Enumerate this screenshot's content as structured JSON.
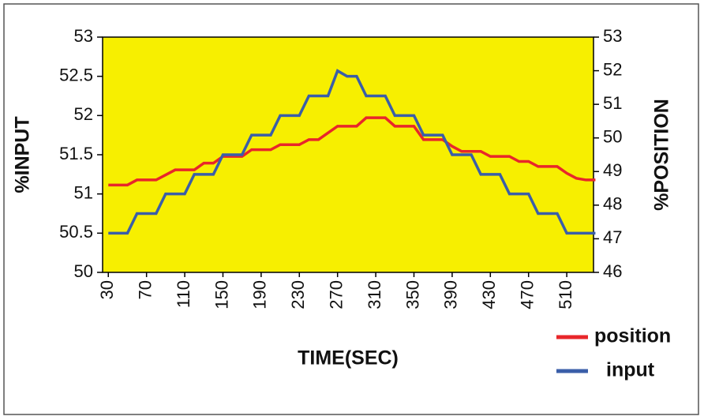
{
  "chart_data": {
    "type": "line",
    "x_label": "TIME(SEC)",
    "y_label": "%INPUT",
    "y2_label": "%POSITION",
    "x": [
      30,
      40,
      50,
      60,
      70,
      80,
      90,
      100,
      110,
      120,
      130,
      140,
      150,
      160,
      170,
      180,
      190,
      200,
      210,
      220,
      230,
      240,
      250,
      260,
      270,
      280,
      290,
      300,
      310,
      320,
      330,
      340,
      350,
      360,
      370,
      380,
      390,
      400,
      410,
      420,
      430,
      440,
      450,
      460,
      470,
      480,
      490,
      500,
      510,
      520,
      530,
      540
    ],
    "series": [
      {
        "name": "position",
        "color": "#e8262a",
        "axis": "y2",
        "values": [
          48.6,
          48.6,
          48.6,
          48.75,
          48.75,
          48.75,
          48.9,
          49.05,
          49.05,
          49.05,
          49.25,
          49.25,
          49.45,
          49.45,
          49.45,
          49.65,
          49.65,
          49.65,
          49.8,
          49.8,
          49.8,
          49.95,
          49.95,
          50.15,
          50.35,
          50.35,
          50.35,
          50.6,
          50.6,
          50.6,
          50.35,
          50.35,
          50.35,
          49.95,
          49.95,
          49.95,
          49.75,
          49.6,
          49.6,
          49.6,
          49.45,
          49.45,
          49.45,
          49.3,
          49.3,
          49.15,
          49.15,
          49.15,
          48.95,
          48.8,
          48.75,
          48.75
        ]
      },
      {
        "name": "input",
        "color": "#3a5ea8",
        "values": [
          50.5,
          50.5,
          50.5,
          50.75,
          50.75,
          50.75,
          51,
          51,
          51,
          51.25,
          51.25,
          51.25,
          51.5,
          51.5,
          51.5,
          51.75,
          51.75,
          51.75,
          52,
          52,
          52,
          52.25,
          52.25,
          52.25,
          52.57,
          52.5,
          52.5,
          52.25,
          52.25,
          52.25,
          52,
          52,
          52,
          51.75,
          51.75,
          51.75,
          51.5,
          51.5,
          51.5,
          51.25,
          51.25,
          51.25,
          51,
          51,
          51,
          50.75,
          50.75,
          50.75,
          50.5,
          50.5,
          50.5,
          50.5
        ]
      }
    ],
    "xlim": [
      24,
      538
    ],
    "xticks": [
      30,
      70,
      110,
      150,
      190,
      230,
      270,
      310,
      350,
      390,
      430,
      470,
      510
    ],
    "ylim": [
      50,
      53
    ],
    "yticks": [
      50,
      50.5,
      51,
      51.5,
      52,
      52.5,
      53
    ],
    "y2lim": [
      46,
      53
    ],
    "y2ticks": [
      46,
      47,
      48,
      49,
      50,
      51,
      52,
      53
    ],
    "plot_background": "#f7ef00",
    "legend": "lower right"
  }
}
